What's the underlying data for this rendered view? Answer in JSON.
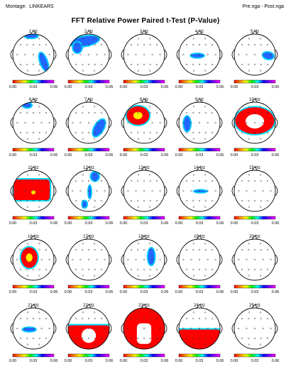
{
  "header": {
    "montage_label": "Montage:",
    "montage_value": "LINKEARS",
    "comparison": "Pre.nga - Post.nga"
  },
  "title": "FFT Relative Power Paired t-Test  (P-Value)",
  "colorbar": {
    "ticks": [
      "0.00",
      "0.03",
      "0.06"
    ],
    "colors": [
      "#ff0000",
      "#ff8800",
      "#ffff00",
      "#00ee00",
      "#00ffff",
      "#0000ff",
      "#8800ff",
      "#ff00ff"
    ]
  },
  "maps": [
    {
      "label": "1 Hz"
    },
    {
      "label": "2 Hz"
    },
    {
      "label": "3 Hz"
    },
    {
      "label": "4 Hz"
    },
    {
      "label": "5 Hz"
    },
    {
      "label": "6 Hz"
    },
    {
      "label": "7 Hz"
    },
    {
      "label": "8 Hz"
    },
    {
      "label": "9 Hz"
    },
    {
      "label": "10 Hz"
    },
    {
      "label": "11 Hz"
    },
    {
      "label": "12 Hz"
    },
    {
      "label": "13 Hz"
    },
    {
      "label": "14 Hz"
    },
    {
      "label": "15 Hz"
    },
    {
      "label": "16 Hz"
    },
    {
      "label": "17 Hz"
    },
    {
      "label": "18 Hz"
    },
    {
      "label": "19 Hz"
    },
    {
      "label": "20 Hz"
    },
    {
      "label": "21 Hz"
    },
    {
      "label": "22 Hz"
    },
    {
      "label": "23 Hz"
    },
    {
      "label": "24 Hz"
    },
    {
      "label": "25 Hz"
    }
  ]
}
